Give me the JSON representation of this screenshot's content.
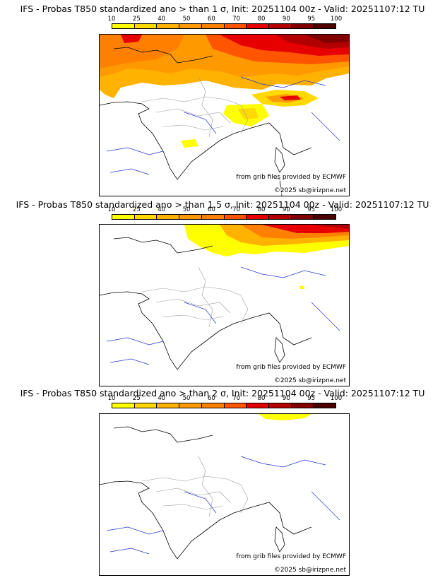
{
  "palette": [
    "#ffff00",
    "#ffd900",
    "#ffb200",
    "#ff9900",
    "#ff7f00",
    "#ff5500",
    "#e60000",
    "#b30000",
    "#800000",
    "#4d0000"
  ],
  "ticks": [
    "10",
    "25",
    "40",
    "50",
    "60",
    "70",
    "80",
    "90",
    "95",
    "100"
  ],
  "panels": [
    {
      "title": "IFS - Probas T850  standardized ano > than 1 σ, Init: 20251104 00z - Valid: 20251107:12 TU",
      "credit1": "from grib files provided by ECMWF",
      "credit2": "©2025 sb@irizpne.net"
    },
    {
      "title": "IFS - Probas T850  standardized ano > than 1.5 σ, Init: 20251104 00z - Valid: 20251107:12 TU",
      "credit1": "from grib files provided by ECMWF",
      "credit2": "©2025 sb@irizpne.net"
    },
    {
      "title": "IFS - Probas T850  standardized ano > than 2 σ, Init: 20251104 00z - Valid: 20251107:12 TU",
      "credit1": "from grib files provided by ECMWF",
      "credit2": "©2025 sb@irizpne.net"
    }
  ]
}
